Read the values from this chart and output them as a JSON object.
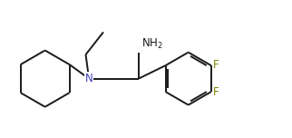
{
  "bg_color": "#ffffff",
  "line_color": "#1a1a1a",
  "label_color_N": "#4040c0",
  "label_color_F": "#808000",
  "label_color_default": "#1a1a1a",
  "line_width": 1.4,
  "figsize": [
    3.22,
    1.52
  ],
  "dpi": 100,
  "xlim": [
    0.0,
    9.0
  ],
  "ylim": [
    0.5,
    4.8
  ]
}
